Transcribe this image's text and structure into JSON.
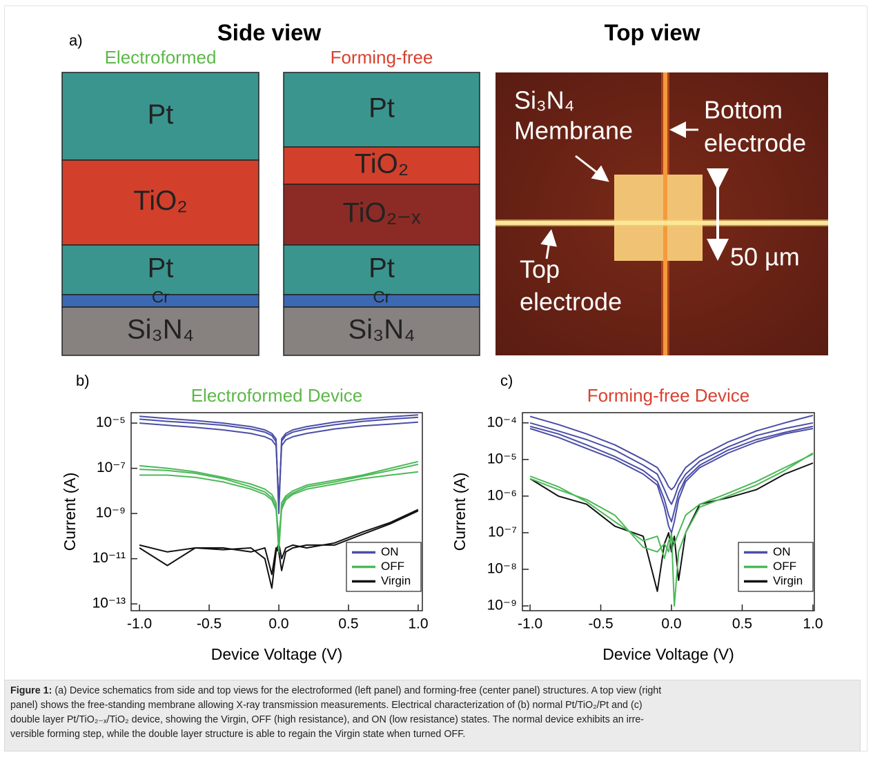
{
  "panel_a": {
    "label": "a)",
    "side_view_title": "Side view",
    "top_view_title": "Top view",
    "electroformed": {
      "title": "Electroformed",
      "title_color": "#5cb848",
      "layers": [
        {
          "label": "Pt",
          "color": "#3a958f"
        },
        {
          "label": "TiO₂",
          "color": "#d2402c"
        },
        {
          "label": "Pt",
          "color": "#3a958f"
        },
        {
          "label": "Cr",
          "color": "#3c69b4"
        },
        {
          "label": "Si₃N₄",
          "color": "#878180"
        }
      ]
    },
    "forming_free": {
      "title": "Forming-free",
      "title_color": "#d9402f",
      "layers": [
        {
          "label": "Pt",
          "color": "#3a958f"
        },
        {
          "label": "TiO₂",
          "color": "#d2402c"
        },
        {
          "label": "TiO₂₋ₓ",
          "color": "#8c2b25"
        },
        {
          "label": "Pt",
          "color": "#3a958f"
        },
        {
          "label": "Cr",
          "color": "#3c69b4"
        },
        {
          "label": "Si₃N₄",
          "color": "#878180"
        }
      ]
    },
    "top_view": {
      "membrane_line1": "Si₃N₄",
      "membrane_line2": "Membrane",
      "bottom_line1": "Bottom",
      "bottom_line2": "electrode",
      "top_line1": "Top",
      "top_line2": "electrode",
      "scale": "50 µm"
    }
  },
  "chart_data": [
    {
      "type": "line",
      "panel_label": "b)",
      "title": "Electroformed Device",
      "title_color": "#5cb848",
      "xlabel": "Device Voltage (V)",
      "ylabel": "Current (A)",
      "log_y": true,
      "legend": "lower right",
      "xlim": [
        -1.06,
        1.03
      ],
      "ylim": [
        5e-14,
        2.9e-05
      ],
      "xticks": [
        {
          "value": -1,
          "label": "-1.0"
        },
        -0.5,
        {
          "value": 0,
          "label": "0.0"
        },
        0.5,
        {
          "value": 1,
          "label": "1.0"
        }
      ],
      "yticks": [
        {
          "value": 1e-13,
          "label": "10⁻¹³"
        },
        {
          "value": 1e-11,
          "label": "10⁻¹¹"
        },
        {
          "value": 1e-09,
          "label": "10⁻⁹"
        },
        {
          "value": 1e-07,
          "label": "10⁻⁷"
        },
        {
          "value": 1e-05,
          "label": "10⁻⁵"
        }
      ],
      "x": [
        -1,
        -0.8,
        -0.6,
        -0.4,
        -0.2,
        -0.1,
        -0.05,
        -0.02,
        0,
        0.02,
        0.05,
        0.1,
        0.2,
        0.4,
        0.6,
        0.8,
        1
      ],
      "series": [
        {
          "name": "ON",
          "color": "#4b4ea6",
          "values": [
            [
              2e-05,
              1.6e-05,
              1.3e-05,
              1e-05,
              7e-06,
              5e-06,
              3.5e-06,
              2e-06,
              1e-09,
              2e-06,
              3.5e-06,
              5e-06,
              7e-06,
              1.1e-05,
              1.5e-05,
              1.9e-05,
              2.3e-05
            ],
            [
              1.5e-05,
              1.2e-05,
              1e-05,
              8e-06,
              5.5e-06,
              4e-06,
              2.8e-06,
              1.5e-06,
              2e-09,
              1.6e-06,
              2.8e-06,
              4e-06,
              5.5e-06,
              8.5e-06,
              1.2e-05,
              1.5e-05,
              1.8e-05
            ],
            [
              1e-05,
              8e-06,
              6.5e-06,
              5e-06,
              3.5e-06,
              2.5e-06,
              1.8e-06,
              1e-06,
              3e-09,
              1e-06,
              1.8e-06,
              2.5e-06,
              3.5e-06,
              5.5e-06,
              7.5e-06,
              9e-06,
              1.1e-05
            ]
          ]
        },
        {
          "name": "OFF",
          "color": "#4cb858",
          "values": [
            [
              1.3e-07,
              1e-07,
              7e-08,
              4e-08,
              2e-08,
              1.2e-08,
              7e-09,
              3e-09,
              3e-11,
              3e-09,
              6e-09,
              1e-08,
              1.8e-08,
              3e-08,
              5e-08,
              1e-07,
              2e-07
            ],
            [
              9e-08,
              8e-08,
              6e-08,
              3.5e-08,
              1.5e-08,
              9e-09,
              5e-09,
              2e-09,
              2e-11,
              2e-09,
              5e-09,
              8e-09,
              1.5e-08,
              2.5e-08,
              4.5e-08,
              8e-08,
              1.5e-07
            ],
            [
              5e-08,
              5e-08,
              4e-08,
              2.5e-08,
              1.2e-08,
              7e-09,
              4e-09,
              1.5e-09,
              1e-10,
              1.5e-09,
              4e-09,
              7e-09,
              1.2e-08,
              2e-08,
              3.5e-08,
              5e-08,
              7e-08
            ]
          ]
        },
        {
          "name": "Virgin",
          "color": "#111111",
          "values": [
            [
              4e-11,
              2e-11,
              3e-11,
              2.5e-11,
              3e-11,
              1e-11,
              5e-13,
              2e-11,
              5e-11,
              1e-11,
              3e-11,
              4e-11,
              3e-11,
              5e-11,
              1.5e-10,
              4e-10,
              1.5e-09
            ],
            [
              3e-11,
              5e-12,
              3e-11,
              3e-11,
              2e-11,
              3e-11,
              2e-12,
              3e-11,
              2e-11,
              3e-12,
              2e-11,
              3e-11,
              4e-11,
              4e-11,
              1.2e-10,
              3.5e-10,
              1.3e-09
            ]
          ]
        }
      ]
    },
    {
      "type": "line",
      "panel_label": "c)",
      "title": "Forming-free Device",
      "title_color": "#d9402f",
      "xlabel": "Device Voltage (V)",
      "ylabel": "Current (A)",
      "log_y": true,
      "legend": "lower right",
      "xlim": [
        -1.054,
        1.01
      ],
      "ylim": [
        7.4e-10,
        0.00019
      ],
      "xticks": [
        {
          "value": -1,
          "label": "-1.0"
        },
        -0.5,
        {
          "value": 0,
          "label": "0.0"
        },
        0.5,
        {
          "value": 1,
          "label": "1.0"
        }
      ],
      "yticks": [
        {
          "value": 1e-09,
          "label": "10⁻⁹"
        },
        {
          "value": 1e-08,
          "label": "10⁻⁸"
        },
        {
          "value": 1e-07,
          "label": "10⁻⁷"
        },
        {
          "value": 1e-06,
          "label": "10⁻⁶"
        },
        {
          "value": 1e-05,
          "label": "10⁻⁵"
        },
        {
          "value": 0.0001,
          "label": "10⁻⁴"
        }
      ],
      "x": [
        -1,
        -0.8,
        -0.6,
        -0.4,
        -0.2,
        -0.1,
        -0.05,
        -0.02,
        0,
        0.02,
        0.05,
        0.1,
        0.2,
        0.4,
        0.6,
        0.8,
        1
      ],
      "series": [
        {
          "name": "ON",
          "color": "#4b4ea6",
          "values": [
            [
              0.00015,
              9e-05,
              5e-05,
              2.5e-05,
              1e-05,
              6e-06,
              3e-06,
              1.8e-06,
              1.5e-06,
              1.8e-06,
              3e-06,
              6e-06,
              1.2e-05,
              3e-05,
              6e-05,
              0.0001,
              0.00016
            ],
            [
              0.0001,
              6e-05,
              3.5e-05,
              1.8e-05,
              7e-06,
              4e-06,
              1.5e-06,
              8e-07,
              6e-07,
              9e-07,
              2e-06,
              4e-06,
              9e-06,
              2.2e-05,
              4.5e-05,
              7e-05,
              0.0001
            ],
            [
              8e-05,
              5e-05,
              2.5e-05,
              1.2e-05,
              5e-06,
              2.5e-06,
              8e-07,
              3e-07,
              2e-07,
              4e-07,
              1.2e-06,
              3e-06,
              7e-06,
              1.8e-05,
              3.5e-05,
              5.5e-05,
              8e-05
            ],
            [
              7e-05,
              4e-05,
              2e-05,
              1e-05,
              4e-06,
              2e-06,
              5e-07,
              1.5e-07,
              1e-07,
              2e-07,
              8e-07,
              2.5e-06,
              6e-06,
              1.5e-05,
              3e-05,
              5e-05,
              7e-05
            ]
          ]
        },
        {
          "name": "OFF",
          "color": "#4cb858",
          "values": [
            [
              3e-06,
              1.5e-06,
              8e-07,
              3e-07,
              4e-08,
              3e-08,
              5e-08,
              3e-08,
              1e-07,
              1e-09,
              3e-08,
              1e-07,
              5e-07,
              1e-06,
              2e-06,
              5e-06,
              1.5e-05
            ],
            [
              3.5e-06,
              1.8e-06,
              7e-07,
              2e-07,
              6e-08,
              8e-08,
              2e-08,
              6e-08,
              8e-08,
              5e-08,
              1e-07,
              3e-07,
              6e-07,
              1.2e-06,
              2.5e-06,
              6e-06,
              1.4e-05
            ]
          ]
        },
        {
          "name": "Virgin",
          "color": "#111111",
          "values": [
            [
              3e-06,
              1e-06,
              6e-07,
              1.5e-07,
              8e-08,
              2.5e-09,
              5e-08,
              1e-07,
              3e-08,
              8e-08,
              5e-09,
              1e-07,
              6e-07,
              9e-07,
              1.5e-06,
              4e-06,
              8e-06
            ]
          ]
        }
      ]
    }
  ],
  "caption": {
    "label": "Figure 1:",
    "lines": [
      "(a) Device schematics from side and top views for the electroformed (left panel) and forming-free (center panel) structures. A top view (right",
      "panel) shows the free-standing membrane allowing X-ray transmission measurements. Electrical characterization of (b) normal Pt/TiO₂/Pt and (c)",
      "double layer Pt/TiO₂₋ₓ/TiO₂ device, showing the Virgin, OFF (high resistance), and ON (low resistance) states. The normal device exhibits an irre-",
      "versible forming step, while the double layer structure is able to regain the Virgin state when turned OFF."
    ]
  }
}
